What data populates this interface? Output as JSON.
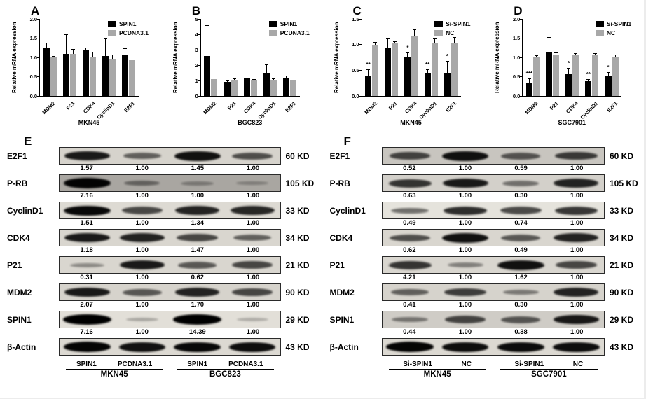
{
  "chart_data": [
    {
      "type": "bar",
      "panel": "A",
      "ylabel": "Relative mRNA expression",
      "xlabel": "MKN45",
      "ylim": [
        0,
        2.0
      ],
      "yticks": [
        "0.0",
        "0.5",
        "1.0",
        "1.5",
        "2.0"
      ],
      "categories": [
        "MDM2",
        "P21",
        "CDK4",
        "CyclinD1",
        "E2F1"
      ],
      "legend_position": "top-right",
      "series": [
        {
          "name": "SPIN1",
          "color": "#000000",
          "values": [
            1.25,
            1.1,
            1.18,
            1.04,
            1.05
          ],
          "errors": [
            0.14,
            0.5,
            0.07,
            0.45,
            0.18
          ],
          "sig": [
            "",
            "",
            "",
            "",
            ""
          ]
        },
        {
          "name": "PCDNA3.1",
          "color": "#a8a8a8",
          "values": [
            1.0,
            1.1,
            1.01,
            0.95,
            0.92
          ],
          "errors": [
            0.03,
            0.12,
            0.13,
            0.12,
            0.05
          ],
          "sig": [
            "",
            "",
            "",
            "",
            ""
          ]
        }
      ]
    },
    {
      "type": "bar",
      "panel": "B",
      "ylabel": "Relative mRNA expression",
      "xlabel": "BGC823",
      "ylim": [
        0,
        5
      ],
      "yticks": [
        "0",
        "1",
        "2",
        "3",
        "4",
        "5"
      ],
      "categories": [
        "MDM2",
        "P21",
        "CDK4",
        "CyclinD1",
        "E2F1"
      ],
      "legend_position": "top-right",
      "series": [
        {
          "name": "SPIN1",
          "color": "#000000",
          "values": [
            2.6,
            0.9,
            1.2,
            1.45,
            1.2
          ],
          "errors": [
            2.0,
            0.1,
            0.12,
            0.6,
            0.12
          ],
          "sig": [
            "",
            "",
            "",
            "",
            ""
          ]
        },
        {
          "name": "PCDNA3.1",
          "color": "#a8a8a8",
          "values": [
            1.08,
            1.05,
            1.0,
            1.0,
            1.0
          ],
          "errors": [
            0.12,
            0.08,
            0.1,
            0.12,
            0.06
          ],
          "sig": [
            "",
            "",
            "",
            "",
            ""
          ]
        }
      ]
    },
    {
      "type": "bar",
      "panel": "C",
      "ylabel": "Relative mRNA expression",
      "xlabel": "MKN45",
      "ylim": [
        0,
        1.5
      ],
      "yticks": [
        "0.0",
        "0.5",
        "1.0",
        "1.5"
      ],
      "categories": [
        "MDM2",
        "P21",
        "CDK4",
        "CyclinD1",
        "E2F1"
      ],
      "legend_position": "top-right",
      "series": [
        {
          "name": "Si-SPIN1",
          "color": "#000000",
          "values": [
            0.38,
            0.94,
            0.75,
            0.45,
            0.44
          ],
          "errors": [
            0.14,
            0.18,
            0.1,
            0.07,
            0.24
          ],
          "sig": [
            "**",
            "",
            "*",
            "**",
            "*"
          ]
        },
        {
          "name": "NC",
          "color": "#a8a8a8",
          "values": [
            0.99,
            1.03,
            1.17,
            1.02,
            1.04
          ],
          "errors": [
            0.06,
            0.03,
            0.13,
            0.1,
            0.11
          ],
          "sig": [
            "",
            "",
            "",
            "",
            ""
          ]
        }
      ]
    },
    {
      "type": "bar",
      "panel": "D",
      "ylabel": "Relative mRNA expression",
      "xlabel": "SGC7901",
      "ylim": [
        0,
        2.0
      ],
      "yticks": [
        "0.0",
        "0.5",
        "1.0",
        "1.5",
        "2.0"
      ],
      "categories": [
        "MDM2",
        "P21",
        "CDK4",
        "CyclinD1",
        "E2F1"
      ],
      "legend_position": "top-right",
      "series": [
        {
          "name": "Si-SPIN1",
          "color": "#000000",
          "values": [
            0.33,
            1.15,
            0.57,
            0.38,
            0.53
          ],
          "errors": [
            0.12,
            0.37,
            0.15,
            0.05,
            0.08
          ],
          "sig": [
            "***",
            "",
            "*",
            "**",
            "*"
          ]
        },
        {
          "name": "NC",
          "color": "#a8a8a8",
          "values": [
            1.02,
            1.06,
            1.05,
            1.06,
            1.02
          ],
          "errors": [
            0.04,
            0.06,
            0.06,
            0.05,
            0.05
          ],
          "sig": [
            "",
            "",
            "",
            "",
            ""
          ]
        }
      ]
    }
  ],
  "blots": [
    {
      "panel": "E",
      "rows": [
        {
          "protein": "E2F1",
          "kd": "60 KD",
          "values": [
            "1.57",
            "1.00",
            "1.45",
            "1.00"
          ],
          "bands": [
            0.85,
            0.45,
            0.9,
            0.55
          ],
          "box_bg": "#d6d3cc"
        },
        {
          "protein": "P-RB",
          "kd": "105 KD",
          "values": [
            "7.16",
            "1.00",
            "1.00",
            "1.00"
          ],
          "bands": [
            0.97,
            0.3,
            0.14,
            0.1
          ],
          "box_bg": "#a9a6a1"
        },
        {
          "protein": "CyclinD1",
          "kd": "33 KD",
          "values": [
            "1.51",
            "1.00",
            "1.34",
            "1.00"
          ],
          "bands": [
            0.95,
            0.6,
            0.8,
            0.78
          ],
          "box_bg": "#dddad3"
        },
        {
          "protein": "CDK4",
          "kd": "34 KD",
          "values": [
            "1.18",
            "1.00",
            "1.47",
            "1.00"
          ],
          "bands": [
            0.85,
            0.8,
            0.6,
            0.45
          ],
          "box_bg": "#d9d6cf"
        },
        {
          "protein": "P21",
          "kd": "21 KD",
          "values": [
            "0.31",
            "1.00",
            "0.62",
            "1.00"
          ],
          "bands": [
            0.22,
            0.85,
            0.5,
            0.6
          ],
          "box_bg": "#d9d6cf"
        },
        {
          "protein": "MDM2",
          "kd": "90 KD",
          "values": [
            "2.07",
            "1.00",
            "1.70",
            "1.00"
          ],
          "bands": [
            0.85,
            0.5,
            0.8,
            0.6
          ],
          "box_bg": "#d6d3cc"
        },
        {
          "protein": "SPIN1",
          "kd": "29 KD",
          "values": [
            "7.16",
            "1.00",
            "14.39",
            "1.00"
          ],
          "bands": [
            1.0,
            0.08,
            1.0,
            0.05
          ],
          "box_bg": "#e2dfd8"
        },
        {
          "protein": "β-Actin",
          "kd": "43 KD",
          "values": [],
          "bands": [
            0.97,
            0.9,
            0.95,
            0.92
          ],
          "box_bg": "#dcd9d2"
        }
      ],
      "lane_labels": [
        "SPIN1",
        "PCDNA3.1",
        "SPIN1",
        "PCDNA3.1"
      ],
      "group_labels": [
        "MKN45",
        "BGC823"
      ]
    },
    {
      "panel": "F",
      "rows": [
        {
          "protein": "E2F1",
          "kd": "60 KD",
          "values": [
            "0.52",
            "1.00",
            "0.59",
            "1.00"
          ],
          "bands": [
            0.6,
            0.9,
            0.5,
            0.65
          ],
          "box_bg": "#c8c5bf"
        },
        {
          "protein": "P-RB",
          "kd": "105 KD",
          "values": [
            "0.63",
            "1.00",
            "0.30",
            "1.00"
          ],
          "bands": [
            0.7,
            0.85,
            0.35,
            0.8
          ],
          "box_bg": "#d3d0ca"
        },
        {
          "protein": "CyclinD1",
          "kd": "33 KD",
          "values": [
            "0.49",
            "1.00",
            "0.74",
            "1.00"
          ],
          "bands": [
            0.4,
            0.75,
            0.6,
            0.7
          ],
          "box_bg": "#e5e3dc"
        },
        {
          "protein": "CDK4",
          "kd": "34 KD",
          "values": [
            "0.62",
            "1.00",
            "0.49",
            "1.00"
          ],
          "bands": [
            0.55,
            0.9,
            0.5,
            0.8
          ],
          "box_bg": "#d9d6cf"
        },
        {
          "protein": "P21",
          "kd": "21 KD",
          "values": [
            "4.21",
            "1.00",
            "1.62",
            "1.00"
          ],
          "bands": [
            0.7,
            0.28,
            0.9,
            0.6
          ],
          "box_bg": "#d9d6cf"
        },
        {
          "protein": "MDM2",
          "kd": "90 KD",
          "values": [
            "0.41",
            "1.00",
            "0.30",
            "1.00"
          ],
          "bands": [
            0.45,
            0.65,
            0.3,
            0.8
          ],
          "box_bg": "#d6d3cc"
        },
        {
          "protein": "SPIN1",
          "kd": "29 KD",
          "values": [
            "0.44",
            "1.00",
            "0.38",
            "1.00"
          ],
          "bands": [
            0.3,
            0.6,
            0.5,
            0.85
          ],
          "box_bg": "#cfccc6"
        },
        {
          "protein": "β-Actin",
          "kd": "43 KD",
          "values": [],
          "bands": [
            0.97,
            0.92,
            0.93,
            0.92
          ],
          "box_bg": "#dcd9d2"
        }
      ],
      "lane_labels": [
        "Si-SPIN1",
        "NC",
        "Si-SPIN1",
        "NC"
      ],
      "group_labels": [
        "MKN45",
        "SGC7901"
      ]
    }
  ]
}
